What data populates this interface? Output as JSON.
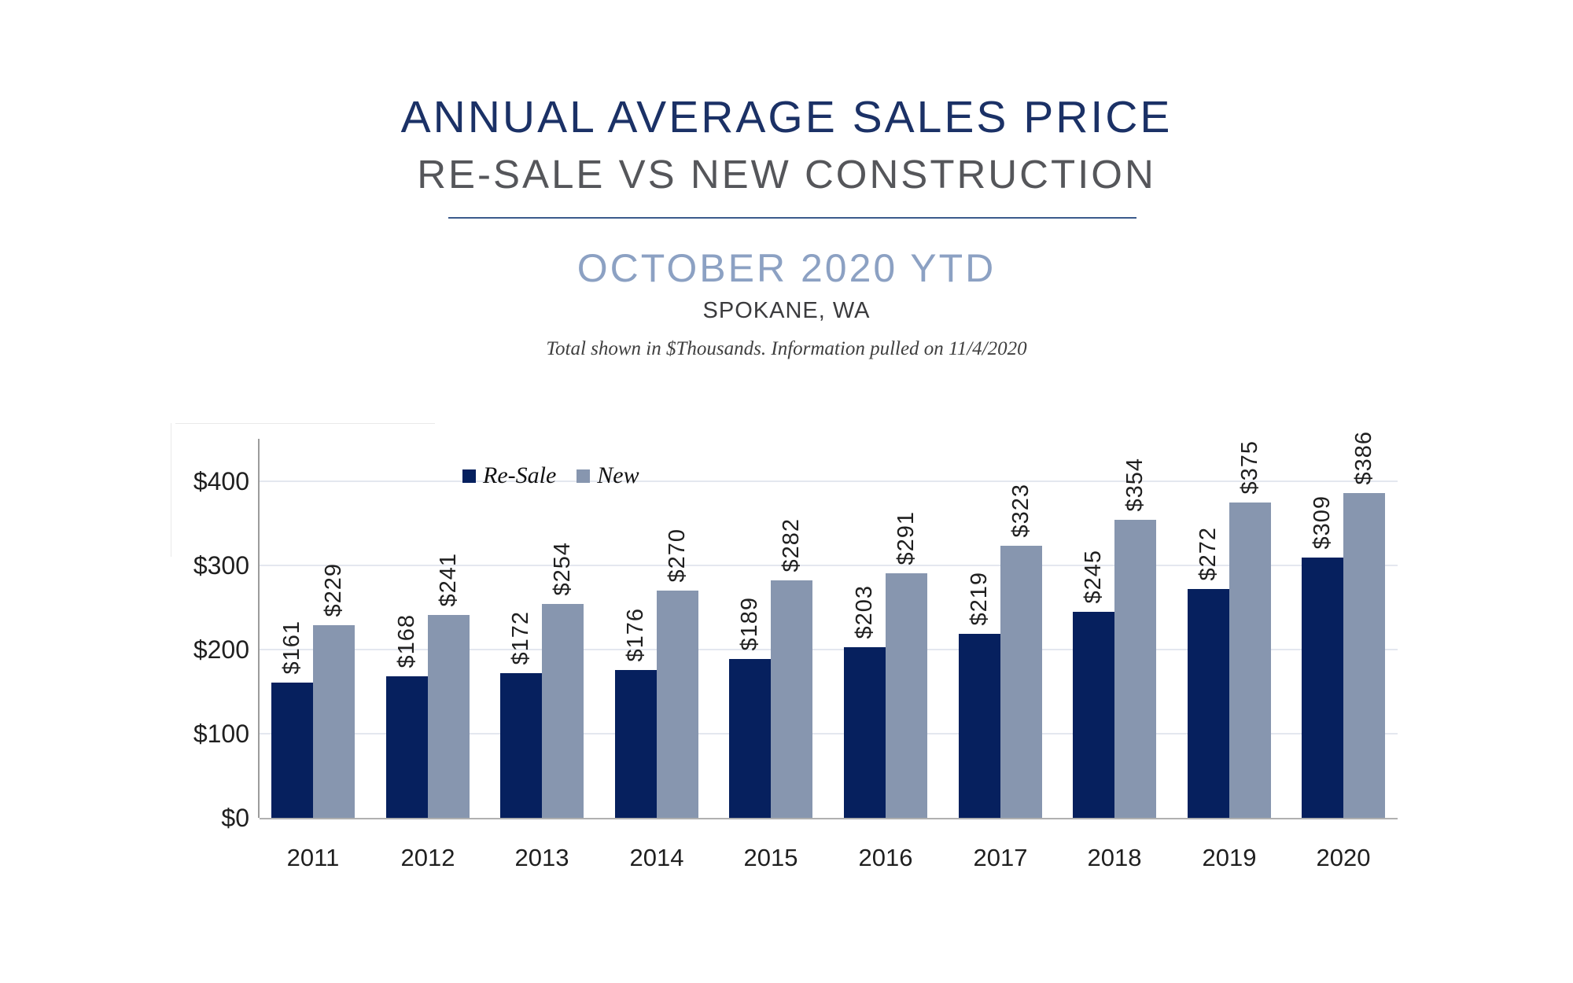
{
  "header": {
    "title": "ANNUAL AVERAGE SALES PRICE",
    "subtitle": "RE-SALE VS NEW CONSTRUCTION",
    "period": "OCTOBER 2020 YTD",
    "location": "SPOKANE, WA",
    "note": "Total shown in $Thousands. Information pulled on 11/4/2020"
  },
  "colors": {
    "title_navy": "#1B3166",
    "subtitle_gray": "#55565A",
    "period_blue_gray": "#8CA1C3",
    "resale_bar": "#06205E",
    "new_bar": "#8796AF"
  },
  "chart_data": {
    "type": "bar",
    "categories": [
      "2011",
      "2012",
      "2013",
      "2014",
      "2015",
      "2016",
      "2017",
      "2018",
      "2019",
      "2020"
    ],
    "series": [
      {
        "name": "Re-Sale",
        "color": "#06205E",
        "values": [
          161,
          168,
          172,
          176,
          189,
          203,
          219,
          245,
          272,
          309
        ]
      },
      {
        "name": "New",
        "color": "#8796AF",
        "values": [
          229,
          241,
          254,
          270,
          282,
          291,
          323,
          354,
          375,
          386
        ]
      }
    ],
    "value_prefix": "$",
    "data_labels": "rotated-90-above-bars",
    "y_ticks": [
      0,
      100,
      200,
      300,
      400
    ],
    "y_tick_labels": [
      "$0",
      "$100",
      "$200",
      "$300",
      "$400"
    ],
    "ylim": [
      0,
      450
    ],
    "grid": true,
    "legend_position": "top-left-inside",
    "xlabel": "",
    "ylabel": ""
  }
}
